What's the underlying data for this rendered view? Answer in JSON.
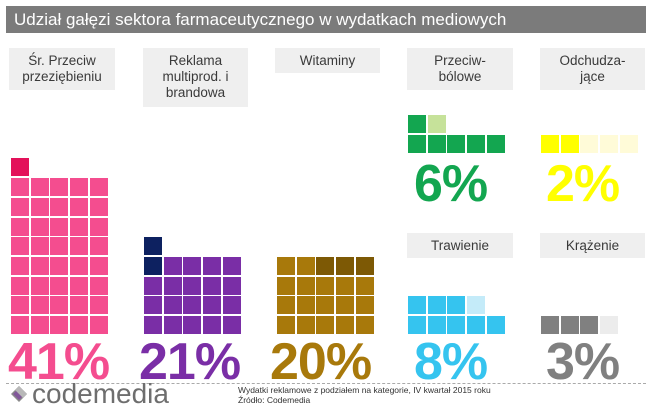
{
  "title": "Udział gałęzi sektora farmaceutycznego w wydatkach mediowych",
  "categories": [
    {
      "id": "przeziebienie",
      "label": "Śr. Przeciw\nprzeziębieniu",
      "pct": "41%",
      "value": 41,
      "color": "#f44d8f",
      "accent": "#e3115a"
    },
    {
      "id": "multiprod",
      "label": "Reklama\nmultiprod. i\nbrandowa",
      "pct": "21%",
      "value": 21,
      "color": "#7a2ea6",
      "accent": "#0d2160"
    },
    {
      "id": "witaminy",
      "label": "Witaminy",
      "pct": "20%",
      "value": 20,
      "color": "#a8790b",
      "accent": "#7d5905"
    },
    {
      "id": "przeciwbolowe",
      "label": "Przeciw-\nbólowe",
      "pct": "6%",
      "value": 6,
      "color": "#13a650",
      "accent": "#c6e29a"
    },
    {
      "id": "odchudzajace",
      "label": "Odchudza-\njące",
      "pct": "2%",
      "value": 2,
      "color": "#ffff00",
      "accent": "#fffbd8"
    },
    {
      "id": "trawienie",
      "label": "Trawienie",
      "pct": "8%",
      "value": 8,
      "color": "#35c4ef",
      "accent": "#c4ebf9"
    },
    {
      "id": "krazenie",
      "label": "Krążenie",
      "pct": "3%",
      "value": 3,
      "color": "#808080",
      "accent": "#ececec"
    }
  ],
  "logo": {
    "text": "codemedia"
  },
  "footnote": {
    "line1": "Wydatki reklamowe z podziałem na kategorie, IV kwartał 2015 roku",
    "line2": "Źródło: Codemedia"
  },
  "chart_data": {
    "type": "waffle",
    "title": "Udział gałęzi sektora farmaceutycznego w wydatkach mediowych",
    "categories": [
      "Śr. Przeciw przeziębieniu",
      "Reklama multiprod. i brandowa",
      "Witaminy",
      "Przeciwbólowe",
      "Odchudzające",
      "Trawienie",
      "Krążenie"
    ],
    "values": [
      41,
      21,
      20,
      6,
      2,
      8,
      3
    ],
    "unit": "%",
    "note": "Wydatki reklamowe z podziałem na kategorie, IV kwartał 2015 roku",
    "source": "Źródło: Codemedia"
  }
}
